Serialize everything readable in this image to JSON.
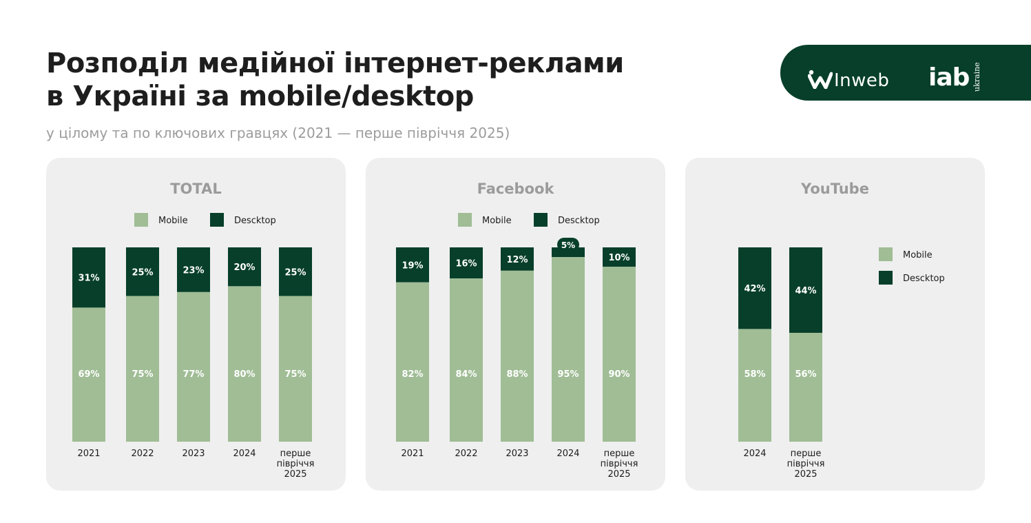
{
  "header": {
    "title_line1": "Розподіл медійної інтернет-реклами",
    "title_line2": "в Україні за mobile/desktop",
    "subtitle": "у цілому та по ключових гравцях (2021 — перше півріччя 2025)"
  },
  "brand": {
    "inweb": "Inweb",
    "iab": "iab",
    "iab_sub": "ukraine"
  },
  "colors": {
    "mobile": "#a0bd95",
    "desktop": "#073f2a",
    "panel": "#efefef",
    "brand_bg": "#073f2a"
  },
  "chart_data": [
    {
      "type": "bar",
      "stacked": true,
      "title": "TOTAL",
      "legend": [
        "Mobile",
        "Descktop"
      ],
      "legend_position": "top",
      "categories": [
        [
          "2021"
        ],
        [
          "2022"
        ],
        [
          "2023"
        ],
        [
          "2024"
        ],
        [
          "перше",
          "півріччя",
          "2025"
        ]
      ],
      "series": [
        {
          "name": "Mobile",
          "values": [
            69,
            75,
            77,
            80,
            75
          ],
          "labels": [
            "69%",
            "75%",
            "77%",
            "80%",
            "75%"
          ]
        },
        {
          "name": "Descktop",
          "values": [
            31,
            25,
            23,
            20,
            25
          ],
          "labels": [
            "31%",
            "25%",
            "23%",
            "20%",
            "25%"
          ]
        }
      ],
      "ylim": [
        0,
        100
      ]
    },
    {
      "type": "bar",
      "stacked": true,
      "title": "Facebook",
      "legend": [
        "Mobile",
        "Descktop"
      ],
      "legend_position": "top",
      "categories": [
        [
          "2021"
        ],
        [
          "2022"
        ],
        [
          "2023"
        ],
        [
          "2024"
        ],
        [
          "перше",
          "півріччя",
          "2025"
        ]
      ],
      "series": [
        {
          "name": "Mobile",
          "values": [
            82,
            84,
            88,
            95,
            90
          ],
          "labels": [
            "82%",
            "84%",
            "88%",
            "95%",
            "90%"
          ]
        },
        {
          "name": "Descktop",
          "values": [
            19,
            16,
            12,
            5,
            10
          ],
          "labels": [
            "19%",
            "16%",
            "12%",
            "5%",
            "10%"
          ]
        }
      ],
      "ylim": [
        0,
        100
      ]
    },
    {
      "type": "bar",
      "stacked": true,
      "title": "YouTube",
      "legend": [
        "Mobile",
        "Descktop"
      ],
      "legend_position": "right",
      "categories": [
        [
          "2024"
        ],
        [
          "перше",
          "півріччя",
          "2025"
        ]
      ],
      "series": [
        {
          "name": "Mobile",
          "values": [
            58,
            56
          ],
          "labels": [
            "58%",
            "56%"
          ]
        },
        {
          "name": "Descktop",
          "values": [
            42,
            44
          ],
          "labels": [
            "42%",
            "44%"
          ]
        }
      ],
      "ylim": [
        0,
        100
      ]
    }
  ]
}
